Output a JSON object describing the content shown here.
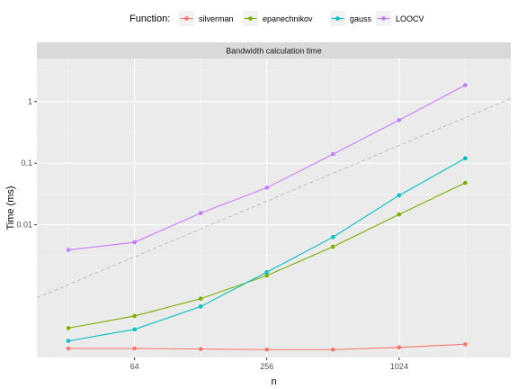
{
  "chart_data": {
    "type": "line",
    "title": "",
    "facet_label": "Bandwidth calculation time",
    "xlabel": "n",
    "ylabel": "Time (ms)",
    "x_scale": "log2",
    "y_scale": "log10",
    "xlim": [
      23,
      3300
    ],
    "ylim": [
      7e-05,
      5
    ],
    "x_ticks": [
      64,
      256,
      1024
    ],
    "x_tick_labels": [
      "64",
      "256",
      "1024"
    ],
    "y_ticks": [
      0.01,
      0.1,
      1
    ],
    "y_tick_labels": [
      "0.01",
      "0.1",
      "1"
    ],
    "grid": true,
    "legend": {
      "title": "Function:",
      "position": "top"
    },
    "x": [
      32,
      64,
      128,
      256,
      512,
      1024,
      2048
    ],
    "series": [
      {
        "name": "silverman",
        "color": "#F8766D",
        "values": [
          9.8e-05,
          9.8e-05,
          9.6e-05,
          9.4e-05,
          9.4e-05,
          0.000102,
          0.000115
        ]
      },
      {
        "name": "epanechnikov",
        "color": "#7CAE00",
        "values": [
          0.00021,
          0.00033,
          0.00063,
          0.0015,
          0.0044,
          0.0147,
          0.048
        ]
      },
      {
        "name": "gauss",
        "color": "#00BFC4",
        "values": [
          0.00013,
          0.0002,
          0.00047,
          0.0017,
          0.0063,
          0.03,
          0.12
        ]
      },
      {
        "name": "LOOCV",
        "color": "#C77CFF",
        "values": [
          0.0039,
          0.0052,
          0.0155,
          0.04,
          0.14,
          0.5,
          1.85
        ]
      }
    ],
    "reference_line": {
      "color": "#B3B3B3",
      "style": "dashed",
      "x": [
        23,
        3300
      ],
      "y": [
        0.00065,
        1.12
      ]
    }
  }
}
